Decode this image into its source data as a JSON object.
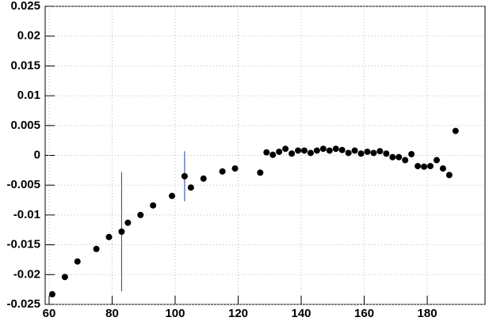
{
  "chart_data": {
    "type": "scatter",
    "color": "#000000",
    "error_color": "#1f3f9f",
    "grid": true,
    "xlim": [
      58.75,
      198.35
    ],
    "ylim": [
      -0.025,
      0.025
    ],
    "xticks": [
      60,
      80,
      100,
      120,
      140,
      160,
      180
    ],
    "yticks": [
      -0.025,
      -0.02,
      -0.015,
      -0.01,
      -0.005,
      0,
      0.005,
      0.01,
      0.015,
      0.02,
      0.025
    ],
    "x": [
      61,
      65,
      69,
      75,
      79,
      83,
      85,
      89,
      93,
      99,
      103,
      105,
      109,
      115,
      119,
      127,
      129,
      131,
      133,
      135,
      137,
      139,
      141,
      143,
      145,
      147,
      149,
      151,
      153,
      155,
      157,
      159,
      161,
      163,
      165,
      167,
      169,
      171,
      173,
      175,
      177,
      179,
      181,
      183,
      185,
      187,
      189
    ],
    "values": [
      -0.0233,
      -0.0204,
      -0.0178,
      -0.0157,
      -0.0137,
      -0.0128,
      -0.0113,
      -0.01,
      -0.0084,
      -0.0068,
      -0.0035,
      -0.0054,
      -0.0039,
      -0.0027,
      -0.0022,
      -0.0029,
      0.0005,
      0.0001,
      0.0006,
      0.0011,
      0.0003,
      0.0008,
      0.0008,
      0.0004,
      0.0008,
      0.0011,
      0.0008,
      0.0011,
      0.0009,
      0.0004,
      0.0008,
      0.0003,
      0.0006,
      0.0004,
      0.0007,
      0.0003,
      -0.0003,
      -0.0003,
      -0.0008,
      0.0002,
      -0.0018,
      -0.0019,
      -0.0018,
      -0.0008,
      -0.0022,
      -0.0033,
      0.0041
    ],
    "errors": [
      null,
      null,
      null,
      null,
      null,
      0.01,
      null,
      null,
      null,
      null,
      0.0042,
      null,
      null,
      null,
      null,
      null,
      null,
      null,
      null,
      null,
      null,
      null,
      null,
      null,
      null,
      null,
      null,
      null,
      null,
      null,
      null,
      null,
      null,
      null,
      null,
      null,
      null,
      null,
      null,
      null,
      null,
      null,
      null,
      null,
      null,
      null,
      null
    ]
  }
}
